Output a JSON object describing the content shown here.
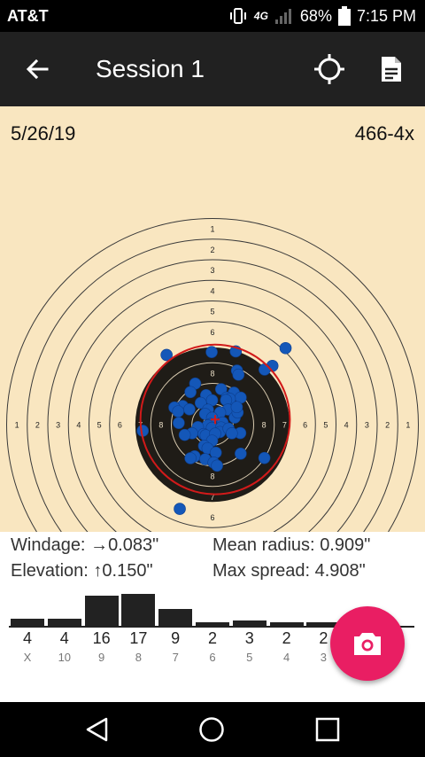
{
  "status_bar": {
    "carrier": "AT&T",
    "network": "4G",
    "battery": "68%",
    "time": "7:15 PM",
    "icons": [
      "vibrate-icon",
      "lte-icon",
      "signal-icon",
      "battery-icon"
    ]
  },
  "app_bar": {
    "title": "Session 1",
    "icons": [
      "arrow-left-icon",
      "crosshair-icon",
      "document-icon"
    ]
  },
  "target": {
    "date": "5/26/19",
    "score": "466-4x",
    "ring_labels": [
      "1",
      "2",
      "3",
      "4",
      "5",
      "6",
      "7",
      "8"
    ],
    "colors": {
      "paper": "#f9e6c0",
      "black_ring": "#1f1c17",
      "shot": "#1457b8",
      "group_circle": "#d11a1a"
    },
    "shots": [
      [
        -2.23,
        -3.38
      ],
      [
        -0.04,
        -3.52
      ],
      [
        1.13,
        -3.55
      ],
      [
        3.55,
        -3.71
      ],
      [
        2.91,
        -2.85
      ],
      [
        2.53,
        -2.67
      ],
      [
        -3.39,
        0.3
      ],
      [
        2.52,
        1.62
      ],
      [
        -1.59,
        4.09
      ],
      [
        1.19,
        -2.62
      ],
      [
        1.26,
        -2.42
      ],
      [
        -0.84,
        -1.99
      ],
      [
        0.42,
        -1.72
      ],
      [
        1.04,
        -1.55
      ],
      [
        1.37,
        -1.31
      ],
      [
        -0.31,
        -1.43
      ],
      [
        -1.07,
        -1.58
      ],
      [
        0.69,
        -1.31
      ],
      [
        0.84,
        -1.25
      ],
      [
        0.66,
        -1.19
      ],
      [
        -0.57,
        -1.05
      ],
      [
        -1.45,
        -0.9
      ],
      [
        -1.85,
        -0.83
      ],
      [
        -1.67,
        -0.64
      ],
      [
        -1.12,
        -0.74
      ],
      [
        -0.02,
        -1.18
      ],
      [
        -1.64,
        -0.08
      ],
      [
        0.75,
        -0.73
      ],
      [
        0.37,
        -0.59
      ],
      [
        -0.22,
        -0.72
      ],
      [
        -0.36,
        -0.52
      ],
      [
        -0.02,
        -0.33
      ],
      [
        0.49,
        -0.1
      ],
      [
        -0.09,
        -0.03
      ],
      [
        -0.23,
        0.04
      ],
      [
        -0.03,
        0.16
      ],
      [
        0.42,
        0.14
      ],
      [
        -0.71,
        0.12
      ],
      [
        0.36,
        0.36
      ],
      [
        1.08,
        -0.34
      ],
      [
        1.22,
        -0.59
      ],
      [
        1.18,
        -0.85
      ],
      [
        0.78,
        0.19
      ],
      [
        1.35,
        0.41
      ],
      [
        0.94,
        0.42
      ],
      [
        -0.43,
        0.46
      ],
      [
        -0.33,
        0.52
      ],
      [
        0.13,
        0.44
      ],
      [
        -0.99,
        0.42
      ],
      [
        -1.35,
        0.5
      ],
      [
        -0.02,
        0.78
      ],
      [
        -0.41,
        1.03
      ],
      [
        -0.24,
        1.15
      ],
      [
        0.16,
        1.36
      ],
      [
        -0.87,
        1.54
      ],
      [
        -1.07,
        1.63
      ],
      [
        -0.35,
        1.68
      ],
      [
        0.05,
        1.84
      ],
      [
        0.22,
        1.99
      ],
      [
        1.37,
        1.41
      ]
    ],
    "mean_point": [
      0.13,
      -0.25
    ],
    "group_radius": 1.65
  },
  "stats": {
    "windage_label": "Windage:",
    "windage_value": "→0.083\"",
    "elevation_label": "Elevation:",
    "elevation_value": "↑0.150\"",
    "mean_radius_label": "Mean radius:",
    "mean_radius_value": "0.909\"",
    "max_spread_label": "Max spread:",
    "max_spread_value": "4.908\""
  },
  "histogram": {
    "bars": [
      {
        "count": "4",
        "ring": "X",
        "value": 4
      },
      {
        "count": "4",
        "ring": "10",
        "value": 4
      },
      {
        "count": "16",
        "ring": "9",
        "value": 16
      },
      {
        "count": "17",
        "ring": "8",
        "value": 17
      },
      {
        "count": "9",
        "ring": "7",
        "value": 9
      },
      {
        "count": "2",
        "ring": "6",
        "value": 2
      },
      {
        "count": "3",
        "ring": "5",
        "value": 3
      },
      {
        "count": "2",
        "ring": "4",
        "value": 2
      },
      {
        "count": "2",
        "ring": "3",
        "value": 2
      }
    ],
    "max_value": 17
  },
  "fab": {
    "icon": "camera-icon"
  },
  "nav_bar": {
    "icons": [
      "nav-back-icon",
      "nav-home-icon",
      "nav-recent-icon"
    ]
  }
}
